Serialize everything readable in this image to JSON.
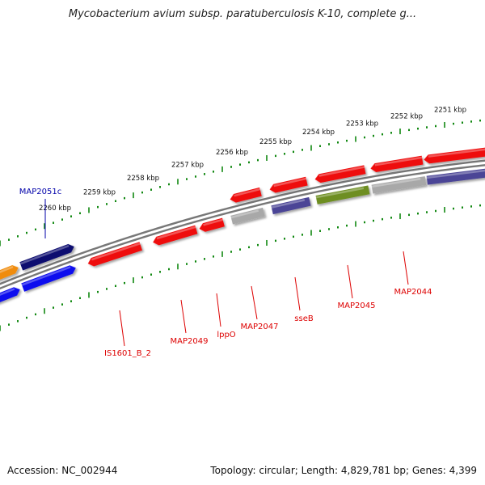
{
  "title": "Mycobacterium avium subsp. paratuberculosis K-10, complete g...",
  "footer": {
    "accession": "Accession: NC_002944",
    "summary": "Topology: circular; Length: 4,829,781 bp; Genes: 4,399"
  },
  "colors": {
    "backbone": "#777777",
    "ticks": "#118811",
    "tick_label": "#111111",
    "label_red": "#dd0000",
    "label_blue": "#0000aa"
  },
  "ruler": {
    "units": "kbp",
    "outer_labels": [
      "2251 kbp",
      "2252 kbp",
      "2253 kbp",
      "2254 kbp",
      "2255 kbp",
      "2256 kbp",
      "2257 kbp",
      "2258 kbp",
      "2259 kbp",
      "2260 kbp"
    ]
  },
  "feature_labels": [
    {
      "text": "MAP2051c",
      "strand": "plus"
    },
    {
      "text": "IS1601_B_2",
      "strand": "minus"
    },
    {
      "text": "MAP2049",
      "strand": "minus"
    },
    {
      "text": "lppO",
      "strand": "minus"
    },
    {
      "text": "MAP2047",
      "strand": "minus"
    },
    {
      "text": "sseB",
      "strand": "minus"
    },
    {
      "text": "MAP2045",
      "strand": "minus"
    },
    {
      "text": "MAP2044",
      "strand": "minus"
    }
  ],
  "feature_colors": {
    "red": "#ee1111",
    "navy": "#0a0a70",
    "blue": "#1111ee",
    "orange": "#f08c10",
    "gray": "#a8a8a8",
    "slate": "#4c4496",
    "olive": "#6e8e22"
  }
}
